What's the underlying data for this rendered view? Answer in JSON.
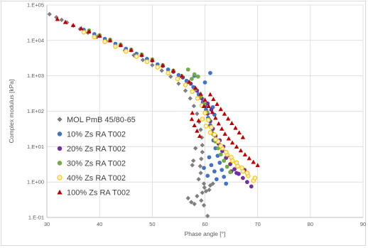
{
  "chart_data": {
    "type": "scatter",
    "title": "",
    "xlabel": "Phase angle [°]",
    "ylabel": "Complex modulus [kPa]",
    "xlim": [
      30,
      90
    ],
    "ylim": [
      0.1,
      100000
    ],
    "yscale": "log",
    "x_ticks": [
      "30",
      "40",
      "50",
      "60",
      "70",
      "80",
      "90"
    ],
    "y_ticks": [
      "1.E-01",
      "1.E+00",
      "1.E+01",
      "1.E+02",
      "1.E+03",
      "1.E+04",
      "1.E+05"
    ],
    "grid": true,
    "legend_position": "bottom-left",
    "series": [
      {
        "name": "MOL PmB 45/80-65",
        "marker": "diamond",
        "color": "#7f7f7f",
        "points": [
          [
            30.5,
            55000
          ],
          [
            31.8,
            45000
          ],
          [
            32.8,
            38000
          ],
          [
            33.8,
            32000
          ],
          [
            35,
            26000
          ],
          [
            36.3,
            21000
          ],
          [
            37.8,
            16500
          ],
          [
            39.5,
            12500
          ],
          [
            41.2,
            9500
          ],
          [
            43,
            7000
          ],
          [
            44.8,
            5200
          ],
          [
            46.5,
            3800
          ],
          [
            48.2,
            2800
          ],
          [
            50,
            2000
          ],
          [
            51.8,
            1400
          ],
          [
            53.5,
            950
          ],
          [
            55,
            600
          ],
          [
            56.3,
            380
          ],
          [
            57.2,
            230
          ],
          [
            57.9,
            140
          ],
          [
            58.5,
            85
          ],
          [
            58.9,
            50
          ],
          [
            59.2,
            30
          ],
          [
            59.4,
            18
          ],
          [
            59.5,
            11
          ],
          [
            59.5,
            7
          ],
          [
            59.3,
            4.5
          ],
          [
            59.1,
            2.8
          ],
          [
            59.2,
            1.8
          ],
          [
            58.8,
            1.2
          ],
          [
            59.8,
            0.9
          ],
          [
            59.5,
            0.5
          ],
          [
            58.5,
            0.4
          ],
          [
            59.3,
            0.3
          ],
          [
            59.8,
            0.22
          ],
          [
            60.5,
            0.11
          ],
          [
            57.8,
            4
          ],
          [
            58.2,
            9
          ],
          [
            57.6,
            3
          ],
          [
            56.8,
            0.35
          ],
          [
            57.4,
            0.27
          ],
          [
            58,
            0.24
          ],
          [
            61,
            0.8
          ],
          [
            61.5,
            0.9
          ],
          [
            60.8,
            0.6
          ],
          [
            59.9,
            0.7
          ],
          [
            60.2,
            0.55
          ]
        ]
      },
      {
        "name": "10% Zs RA T002",
        "marker": "circle",
        "color": "#4472c4",
        "points": [
          [
            37,
            20000
          ],
          [
            39,
            15000
          ],
          [
            41,
            11000
          ],
          [
            43,
            8000
          ],
          [
            45,
            5800
          ],
          [
            47,
            4200
          ],
          [
            49,
            3000
          ],
          [
            51,
            2100
          ],
          [
            53,
            1500
          ],
          [
            55,
            1050
          ],
          [
            56.5,
            720
          ],
          [
            57.8,
            480
          ],
          [
            58.8,
            300
          ],
          [
            59.6,
            180
          ],
          [
            60.2,
            110
          ],
          [
            60.6,
            65
          ],
          [
            61,
            40
          ],
          [
            61.3,
            25
          ],
          [
            61.6,
            15
          ],
          [
            62,
            9
          ],
          [
            62.4,
            5.5
          ],
          [
            62.8,
            3.5
          ],
          [
            63.2,
            2.2
          ],
          [
            63.6,
            1.4
          ],
          [
            64,
            0.9
          ],
          [
            58,
            1000
          ],
          [
            60,
            650
          ],
          [
            61,
            1200
          ],
          [
            59.8,
            2.5
          ],
          [
            60.5,
            1.5
          ],
          [
            61.2,
            3
          ],
          [
            61.8,
            2
          ],
          [
            60.8,
            5
          ],
          [
            62.2,
            1.2
          ],
          [
            61.5,
            130
          ],
          [
            61.8,
            80
          ]
        ]
      },
      {
        "name": "20% Zs RA T002",
        "marker": "circle",
        "color": "#7030a0",
        "points": [
          [
            38,
            18000
          ],
          [
            40,
            13500
          ],
          [
            42,
            10000
          ],
          [
            44,
            7300
          ],
          [
            46,
            5300
          ],
          [
            48,
            3800
          ],
          [
            50,
            2700
          ],
          [
            52,
            1900
          ],
          [
            54,
            1300
          ],
          [
            55.8,
            900
          ],
          [
            57.3,
            600
          ],
          [
            58.5,
            380
          ],
          [
            59.4,
            230
          ],
          [
            60,
            140
          ],
          [
            60.5,
            85
          ],
          [
            61,
            52
          ],
          [
            61.5,
            32
          ],
          [
            62,
            20
          ],
          [
            62.6,
            12
          ],
          [
            63.3,
            7.5
          ],
          [
            64,
            4.8
          ],
          [
            64.8,
            3.2
          ],
          [
            65.6,
            2.3
          ],
          [
            66.4,
            1.7
          ],
          [
            67.2,
            1.3
          ],
          [
            68,
            1
          ],
          [
            68.8,
            0.75
          ],
          [
            62.8,
            15
          ],
          [
            63.5,
            10
          ],
          [
            64.2,
            5.5
          ],
          [
            65,
            2
          ],
          [
            66,
            1.8
          ],
          [
            67.5,
            2.2
          ],
          [
            60.5,
            165
          ],
          [
            61.2,
            110
          ]
        ]
      },
      {
        "name": "30% Zs RA T002",
        "marker": "circle",
        "color": "#70ad47",
        "points": [
          [
            38,
            19000
          ],
          [
            40,
            14000
          ],
          [
            42,
            10500
          ],
          [
            44,
            7600
          ],
          [
            46,
            5500
          ],
          [
            48,
            4000
          ],
          [
            50,
            2900
          ],
          [
            52,
            2000
          ],
          [
            54,
            1400
          ],
          [
            55.6,
            980
          ],
          [
            57,
            650
          ],
          [
            58.2,
            420
          ],
          [
            59.2,
            260
          ],
          [
            59.9,
            160
          ],
          [
            60.4,
            95
          ],
          [
            60.8,
            58
          ],
          [
            61.2,
            35
          ],
          [
            61.6,
            22
          ],
          [
            62,
            14
          ],
          [
            62.5,
            9
          ],
          [
            63,
            6
          ],
          [
            63.6,
            4
          ],
          [
            64.2,
            2.7
          ],
          [
            64.8,
            1.9
          ],
          [
            56.8,
            1500
          ],
          [
            57.5,
            820
          ],
          [
            58,
            1100
          ],
          [
            58.7,
            950
          ]
        ]
      },
      {
        "name": "40% Zs RA T002",
        "marker": "circle-open",
        "color": "#ffc000",
        "points": [
          [
            37,
            17000
          ],
          [
            39,
            12500
          ],
          [
            41,
            9200
          ],
          [
            43,
            6700
          ],
          [
            45,
            4900
          ],
          [
            47,
            3500
          ],
          [
            49,
            2500
          ],
          [
            51,
            1750
          ],
          [
            53,
            1200
          ],
          [
            54.8,
            820
          ],
          [
            56.3,
            550
          ],
          [
            57.6,
            360
          ],
          [
            58.6,
            230
          ],
          [
            59.4,
            145
          ],
          [
            60,
            90
          ],
          [
            60.6,
            56
          ],
          [
            61.2,
            35
          ],
          [
            61.8,
            22
          ],
          [
            62.5,
            14
          ],
          [
            63.3,
            9
          ],
          [
            64.2,
            6
          ],
          [
            65.2,
            4
          ],
          [
            66.2,
            2.8
          ],
          [
            67.2,
            2
          ],
          [
            68.2,
            1.5
          ],
          [
            69.2,
            1.1
          ],
          [
            59.5,
            60
          ],
          [
            60.2,
            38
          ],
          [
            61,
            25
          ],
          [
            62,
            16
          ],
          [
            63,
            10.5
          ],
          [
            64,
            7
          ],
          [
            65,
            5
          ],
          [
            66,
            3.5
          ],
          [
            67,
            2.5
          ],
          [
            68,
            1.8
          ],
          [
            69.5,
            1.3
          ]
        ]
      },
      {
        "name": "100% Zs RA T002",
        "marker": "triangle",
        "color": "#c00000",
        "points": [
          [
            32,
            40000
          ],
          [
            33.5,
            33000
          ],
          [
            35,
            27000
          ],
          [
            36.5,
            22000
          ],
          [
            38,
            18000
          ],
          [
            40,
            13500
          ],
          [
            42,
            10000
          ],
          [
            44,
            7400
          ],
          [
            46,
            5400
          ],
          [
            48,
            3900
          ],
          [
            50,
            2800
          ],
          [
            52,
            2000
          ],
          [
            54,
            1400
          ],
          [
            55.6,
            1000
          ],
          [
            57,
            680
          ],
          [
            58.2,
            460
          ],
          [
            59.2,
            310
          ],
          [
            60,
            210
          ],
          [
            60.7,
            140
          ],
          [
            61.4,
            95
          ],
          [
            62,
            65
          ],
          [
            62.6,
            45
          ],
          [
            63.2,
            32
          ],
          [
            63.8,
            23
          ],
          [
            64.5,
            17
          ],
          [
            65.2,
            13
          ],
          [
            66,
            10
          ],
          [
            66.8,
            7.8
          ],
          [
            67.6,
            6
          ],
          [
            68.4,
            4.7
          ],
          [
            69.2,
            3.7
          ],
          [
            70,
            3
          ],
          [
            57.5,
            60
          ],
          [
            58,
            40
          ],
          [
            58.5,
            28
          ],
          [
            59,
            20
          ],
          [
            61,
            300
          ],
          [
            61.6,
            220
          ],
          [
            62.3,
            160
          ],
          [
            63,
            115
          ],
          [
            63.7,
            85
          ],
          [
            64.4,
            62
          ],
          [
            65.1,
            46
          ],
          [
            65.8,
            34
          ],
          [
            66.5,
            25
          ],
          [
            67.2,
            18.5
          ],
          [
            57.6,
            90
          ],
          [
            58.8,
            55
          ],
          [
            59.8,
            140
          ]
        ]
      }
    ]
  }
}
